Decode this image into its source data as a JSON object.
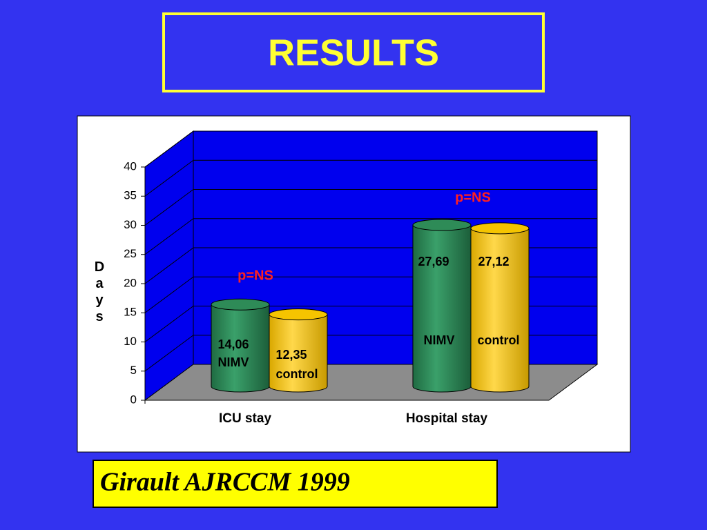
{
  "chart_data": {
    "type": "bar",
    "title": "RESULTS",
    "categories": [
      "ICU stay",
      "Hospital stay"
    ],
    "series": [
      {
        "name": "NIMV",
        "color": "#2e8b57",
        "values": [
          14.06,
          27.69
        ],
        "value_labels": [
          "14,06",
          "27,69"
        ]
      },
      {
        "name": "control",
        "color": "#f5c400",
        "values": [
          12.35,
          27.12
        ],
        "value_labels": [
          "12,35",
          "27,12"
        ]
      }
    ],
    "y_label": "Days",
    "ylim": [
      0,
      40
    ],
    "yticks": [
      0,
      5,
      10,
      15,
      20,
      25,
      30,
      35,
      40
    ],
    "grid": true,
    "annotations": [
      "p=NS",
      "p=NS"
    ],
    "source": "Girault AJRCCM 1999"
  }
}
